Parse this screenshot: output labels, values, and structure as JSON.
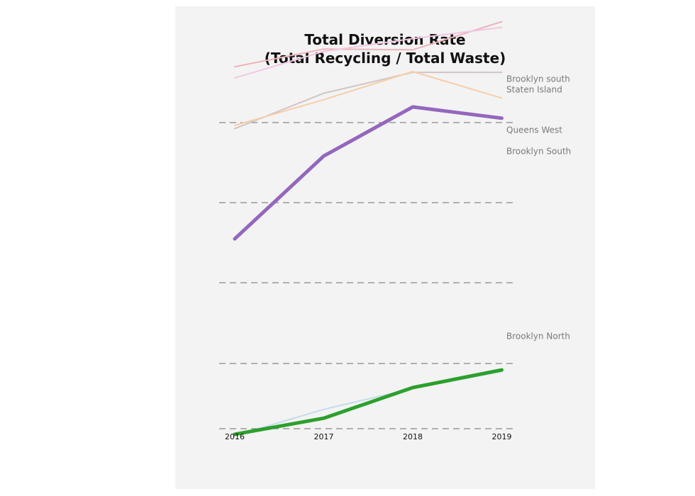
{
  "chart_data": {
    "type": "line",
    "title_line1": "Total Diversion Rate",
    "title_line2": "(Total Recycling / Total Waste)",
    "xlabel": "",
    "ylabel": "",
    "categories": [
      "2016",
      "2017",
      "2018",
      "2019"
    ],
    "gridlines": 5,
    "grid": true,
    "series": [
      {
        "name": "Brooklyn south",
        "color": "#ecb3b8",
        "emphasis": false,
        "values": [
          0.169,
          0.191,
          0.19,
          0.225
        ]
      },
      {
        "name": "Staten Island",
        "color": "#f2c6e3",
        "emphasis": false,
        "values": [
          0.155,
          0.188,
          0.204,
          0.218
        ]
      },
      {
        "name": "Queens West",
        "color": "#d3c4c3",
        "emphasis": false,
        "values": [
          0.092,
          0.136,
          0.162,
          0.162
        ]
      },
      {
        "name": "Brooklyn South",
        "color": "#f6ceaa",
        "emphasis": false,
        "values": [
          0.096,
          0.128,
          0.163,
          0.13
        ]
      },
      {
        "name": "",
        "color": "#9467bd",
        "emphasis": true,
        "values": [
          -0.045,
          0.058,
          0.119,
          0.105
        ]
      },
      {
        "name": "",
        "color": "#c4dbe9",
        "emphasis": false,
        "values": [
          -0.29,
          -0.257,
          -0.231,
          -0.21
        ]
      },
      {
        "name": "Brooklyn North",
        "color": "#2ca02c",
        "emphasis": true,
        "values": [
          -0.288,
          -0.268,
          -0.23,
          -0.208
        ]
      }
    ]
  }
}
